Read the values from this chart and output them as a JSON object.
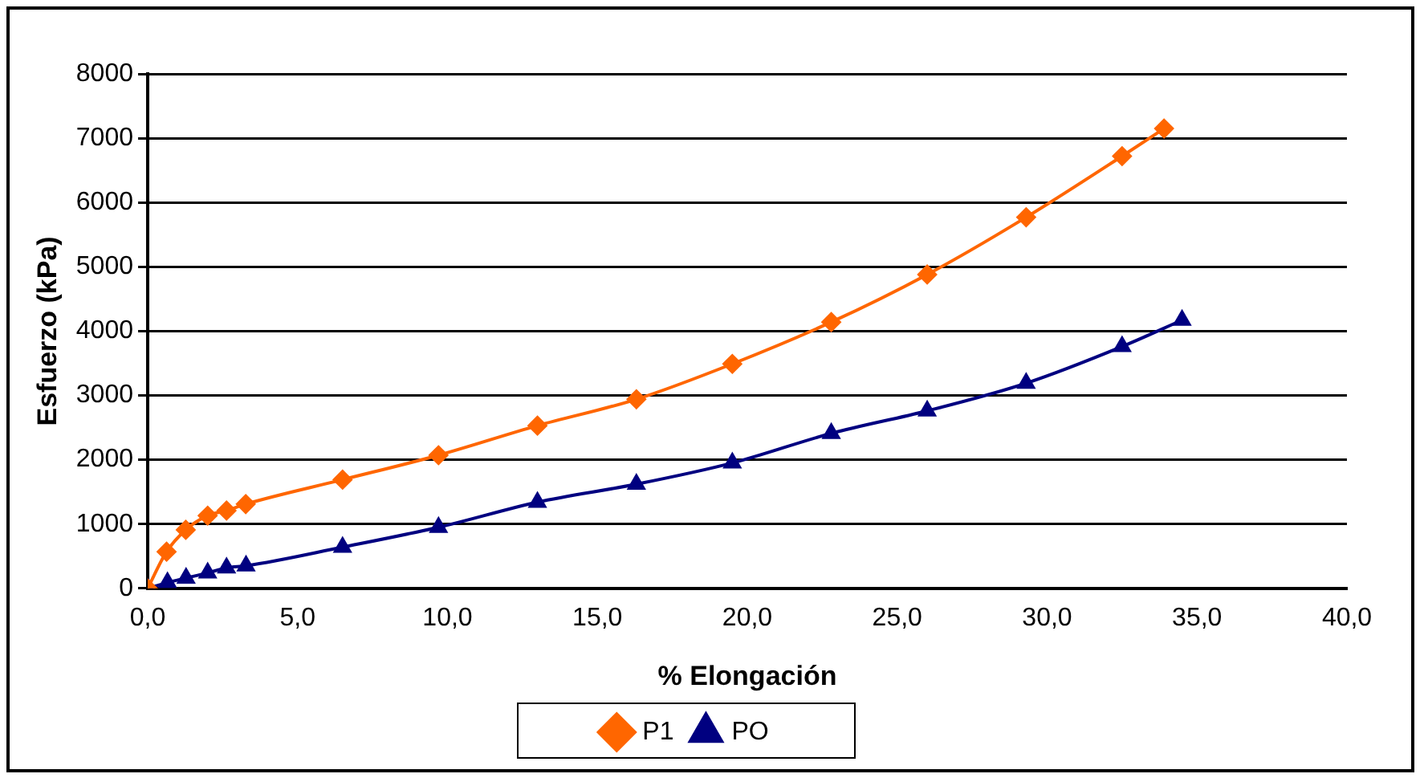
{
  "chart_data": {
    "type": "line",
    "xlabel": "% Elongación",
    "ylabel": "Esfuerzo (kPa)",
    "xlim": [
      0,
      40
    ],
    "xticks": [
      {
        "value": 0,
        "label": "0,0"
      },
      {
        "value": 5,
        "label": "5,0"
      },
      {
        "value": 10,
        "label": "10,0"
      },
      {
        "value": 15,
        "label": "15,0"
      },
      {
        "value": 20,
        "label": "20,0"
      },
      {
        "value": 25,
        "label": "25,0"
      },
      {
        "value": 30,
        "label": "30,0"
      },
      {
        "value": 35,
        "label": "35,0"
      },
      {
        "value": 40,
        "label": "40,0"
      }
    ],
    "ylim": [
      0,
      8000
    ],
    "yticks": [
      0,
      1000,
      2000,
      3000,
      4000,
      5000,
      6000,
      7000,
      8000
    ],
    "grid": "y",
    "legend": "bottom",
    "series": [
      {
        "name": "P1",
        "color": "#ff6600",
        "marker": "diamond",
        "x": [
          0,
          0.63,
          1.27,
          2.0,
          2.63,
          3.27,
          6.5,
          9.7,
          13.0,
          16.3,
          19.5,
          22.8,
          26.0,
          29.3,
          32.5,
          33.9
        ],
        "values": [
          0,
          570,
          910,
          1130,
          1210,
          1310,
          1690,
          2070,
          2530,
          2940,
          3490,
          4140,
          4880,
          5770,
          6720,
          7150
        ]
      },
      {
        "name": "PO",
        "color": "#000080",
        "marker": "triangle",
        "x": [
          0,
          0.66,
          1.28,
          2.0,
          2.63,
          3.28,
          6.5,
          9.7,
          13.0,
          16.3,
          19.5,
          22.8,
          26.0,
          29.3,
          32.5,
          34.5
        ],
        "values": [
          0,
          90,
          160,
          240,
          320,
          350,
          640,
          950,
          1340,
          1620,
          1950,
          2410,
          2760,
          3190,
          3760,
          4170
        ]
      }
    ]
  }
}
